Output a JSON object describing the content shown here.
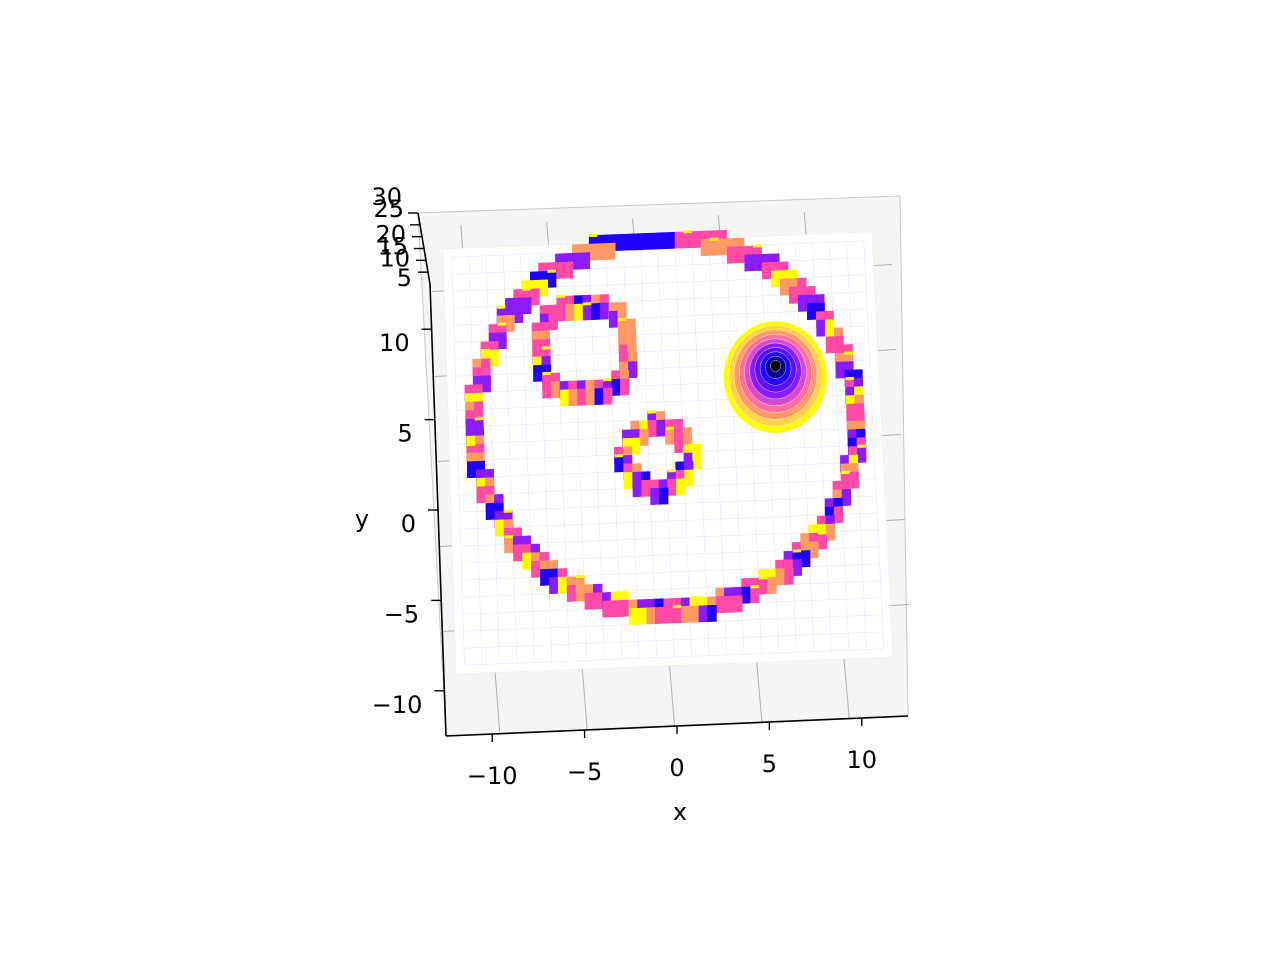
{
  "chart_data": {
    "type": "surface3d",
    "title": "",
    "xlabel": "x",
    "ylabel": "y",
    "zlabel": "",
    "xlim": [
      -12.5,
      12.5
    ],
    "ylim": [
      -12.5,
      12.5
    ],
    "zlim": [
      0,
      30
    ],
    "xticks": [
      -10,
      -5,
      0,
      5,
      10
    ],
    "yticks": [
      -10,
      -5,
      0,
      5,
      10
    ],
    "zticks": [
      5,
      10,
      15,
      20,
      25,
      30
    ],
    "colormap": "plasma",
    "grid": true,
    "view": "top-down, tilted",
    "features": {
      "outer_ring": {
        "center": [
          0,
          1.5
        ],
        "inner_radius": 10.5,
        "outer_radius": 11.5
      },
      "upper_left_ring": {
        "center": [
          -4.5,
          6.0
        ],
        "inner_radius": 2.2,
        "outer_radius": 3.2
      },
      "center_ring": {
        "center": [
          -0.5,
          -0.5
        ],
        "inner_radius": 1.3,
        "outer_radius": 2.3
      },
      "bump": {
        "center": [
          6.5,
          4.2
        ],
        "radius": 3.0,
        "peak_z": 30
      }
    },
    "palette": {
      "yellow": "#fffc00",
      "orange": "#ff9966",
      "pink": "#ff4aa8",
      "purple": "#8a1cff",
      "blue": "#1f00ff",
      "black": "#000000",
      "wall": "#f5f5f5",
      "gridline": "#b0b0b0"
    }
  }
}
